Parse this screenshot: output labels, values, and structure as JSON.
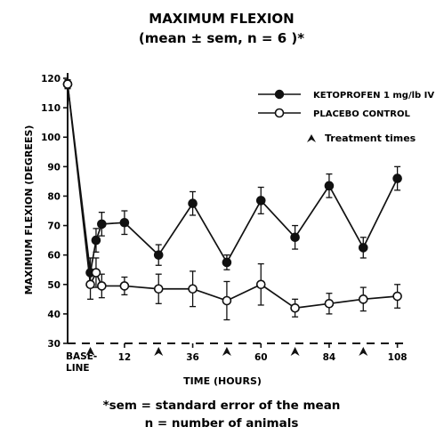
{
  "chart_data": {
    "type": "line",
    "title": "MAXIMUM FLEXION",
    "subtitle": "(mean ± sem, n = 6 )*",
    "xlabel": "TIME (HOURS)",
    "ylabel": "MAXIMUM FLEXION (DEGREES)",
    "ylim": [
      30,
      120
    ],
    "yticks": [
      30,
      40,
      50,
      60,
      70,
      80,
      90,
      100,
      110,
      120
    ],
    "xlim": [
      -8,
      110
    ],
    "xticks": [
      {
        "value": -8,
        "label1": "BASE-",
        "label2": "LINE"
      },
      {
        "value": 12,
        "label1": "12"
      },
      {
        "value": 36,
        "label1": "36"
      },
      {
        "value": 60,
        "label1": "60"
      },
      {
        "value": 84,
        "label1": "84"
      },
      {
        "value": 108,
        "label1": "108"
      }
    ],
    "treatment_times": [
      0,
      24,
      48,
      72,
      96
    ],
    "series": [
      {
        "name": "KETOPROFEN 1 mg/lb IV",
        "marker": "filled",
        "points": [
          {
            "x": -8,
            "y": 118,
            "err": 1.5
          },
          {
            "x": 0,
            "y": 54,
            "err": 5
          },
          {
            "x": 2,
            "y": 65,
            "err": 4
          },
          {
            "x": 4,
            "y": 70.5,
            "err": 4
          },
          {
            "x": 12,
            "y": 71,
            "err": 4
          },
          {
            "x": 24,
            "y": 60,
            "err": 3.5
          },
          {
            "x": 36,
            "y": 77.5,
            "err": 4
          },
          {
            "x": 48,
            "y": 57.5,
            "err": 2.5
          },
          {
            "x": 60,
            "y": 78.5,
            "err": 4.5
          },
          {
            "x": 72,
            "y": 66,
            "err": 4
          },
          {
            "x": 84,
            "y": 83.5,
            "err": 4
          },
          {
            "x": 96,
            "y": 62.5,
            "err": 3.5
          },
          {
            "x": 108,
            "y": 86,
            "err": 4
          }
        ]
      },
      {
        "name": "PLACEBO CONTROL",
        "marker": "open",
        "points": [
          {
            "x": -8,
            "y": 118,
            "err": 1.5
          },
          {
            "x": 0,
            "y": 50,
            "err": 5
          },
          {
            "x": 2,
            "y": 54,
            "err": 5
          },
          {
            "x": 4,
            "y": 49.5,
            "err": 4
          },
          {
            "x": 12,
            "y": 49.5,
            "err": 3
          },
          {
            "x": 24,
            "y": 48.5,
            "err": 5
          },
          {
            "x": 36,
            "y": 48.5,
            "err": 6
          },
          {
            "x": 48,
            "y": 44.5,
            "err": 6.5
          },
          {
            "x": 60,
            "y": 50,
            "err": 7
          },
          {
            "x": 72,
            "y": 42,
            "err": 3
          },
          {
            "x": 84,
            "y": 43.5,
            "err": 3.5
          },
          {
            "x": 96,
            "y": 45,
            "err": 4
          },
          {
            "x": 108,
            "y": 46,
            "err": 4
          }
        ]
      }
    ],
    "legend": {
      "placement": "top-right",
      "treatment_label": "Treatment times"
    },
    "footnote_line1": "*sem = standard error of the mean",
    "footnote_line2": "n = number of animals",
    "grid": false
  }
}
